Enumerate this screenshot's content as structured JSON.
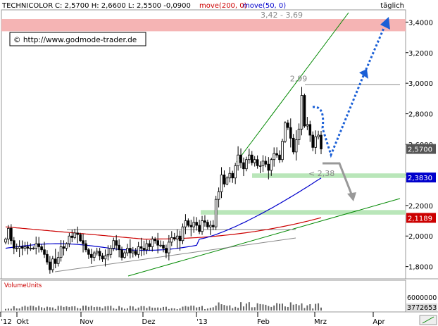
{
  "header": {
    "symbol": "TECHNICOLOR",
    "quote": "C: 2,5700 H: 2,6600 L: 2,5500 -0,0900",
    "ma_label_200": "move(200, 0)",
    "ma_label_50": "move(50, 0)",
    "period": "täglich",
    "copyright": "© http://www.godmode-trader.de"
  },
  "colors": {
    "price": "#000000",
    "ma200": "#cc0000",
    "ma50": "#0000cc",
    "trend": "#008800",
    "target_zone": "#f5b4b4",
    "support_zone": "#b9e6b9",
    "arrow_up": "#1a5fd6",
    "arrow_down": "#999999",
    "volume": "#555555"
  },
  "chart_data": {
    "type": "candlestick",
    "title": "TECHNICOLOR",
    "ylim": [
      1.72,
      3.48
    ],
    "y_ticks": [
      1.8,
      2.0,
      2.2,
      2.4,
      2.6,
      2.8,
      3.0,
      3.2,
      3.4
    ],
    "y_tick_labels": [
      "1,8000",
      "2,0000",
      "2,2000",
      "2,4000",
      "2,6000",
      "2,8000",
      "3,0000",
      "3,2000",
      "3,4000"
    ],
    "x_tick_labels": [
      "'12",
      "Okt",
      "Nov",
      "Dez",
      "'13",
      "Feb",
      "Mrz",
      "Apr"
    ],
    "price_tags": [
      {
        "label": "2,5700",
        "value": 2.57,
        "color": "#555555"
      },
      {
        "label": "2,3830",
        "value": 2.383,
        "color": "#0000cc"
      },
      {
        "label": "2,1189",
        "value": 2.1189,
        "color": "#cc0000"
      }
    ],
    "annotations": {
      "target_zone": {
        "label": "3,42 - 3,69",
        "from": 3.34,
        "to": 3.42
      },
      "high": {
        "label": "2,99",
        "value": 2.99
      },
      "support_upper": {
        "from": 2.38,
        "to": 2.41
      },
      "support_lower": {
        "label": "< 2,38",
        "from": 2.14,
        "to": 2.17
      }
    },
    "closes": [
      1.98,
      2.05,
      1.97,
      1.92,
      1.92,
      1.93,
      1.92,
      1.93,
      1.92,
      1.92,
      1.92,
      1.95,
      1.93,
      1.91,
      1.88,
      1.83,
      1.78,
      1.85,
      1.82,
      1.86,
      1.93,
      1.92,
      1.95,
      2.0,
      1.99,
      2.02,
      2.01,
      1.97,
      1.95,
      1.91,
      1.88,
      1.86,
      1.89,
      1.9,
      1.87,
      1.85,
      1.87,
      1.88,
      1.92,
      1.97,
      1.94,
      1.91,
      1.86,
      1.89,
      1.92,
      1.89,
      1.9,
      1.88,
      1.93,
      1.92,
      1.91,
      1.95,
      1.93,
      1.98,
      1.97,
      1.94,
      1.94,
      1.92,
      1.89,
      1.96,
      1.99,
      1.98,
      2.0,
      1.97,
      2.06,
      2.1,
      2.07,
      2.06,
      2.09,
      2.07,
      2.03,
      2.1,
      2.09,
      2.06,
      2.07,
      2.06,
      2.24,
      2.29,
      2.4,
      2.34,
      2.38,
      2.41,
      2.38,
      2.46,
      2.53,
      2.48,
      2.44,
      2.5,
      2.53,
      2.48,
      2.5,
      2.46,
      2.46,
      2.49,
      2.47,
      2.43,
      2.5,
      2.54,
      2.53,
      2.5,
      2.62,
      2.74,
      2.71,
      2.64,
      2.55,
      2.63,
      2.7,
      2.92,
      2.72,
      2.73,
      2.66,
      2.58,
      2.65,
      2.66,
      2.57
    ],
    "ma200": {
      "from": 2.04,
      "to": 2.12
    },
    "ma50": {
      "from": 1.98,
      "to": 2.38
    },
    "volume": {
      "label": "VolumeUnits",
      "y_tick_label": "6000000",
      "last_label": "3772653"
    }
  }
}
